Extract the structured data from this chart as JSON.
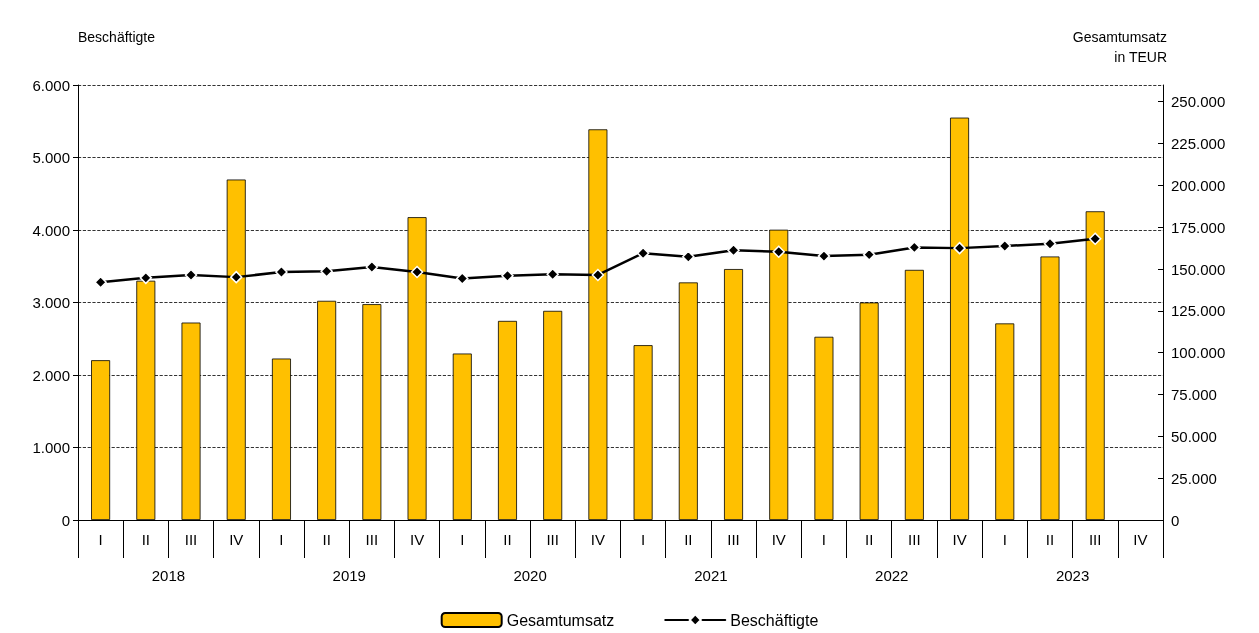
{
  "chart_data": {
    "type": "bar",
    "ylabel": "Beschäftigte",
    "y2label": "Gesamtumsatz\nin TEUR",
    "categories": [
      "I",
      "II",
      "III",
      "IV",
      "I",
      "II",
      "III",
      "IV",
      "I",
      "II",
      "III",
      "IV",
      "I",
      "II",
      "III",
      "IV",
      "I",
      "II",
      "III",
      "IV",
      "I",
      "II",
      "III",
      "IV"
    ],
    "annotations": [
      "2018",
      "2019",
      "2020",
      "2021",
      "2022",
      "2023"
    ],
    "series": [
      {
        "name": "Gesamtumsatz",
        "axis": "y2",
        "color": "#ffc000",
        "values": [
          95500,
          143000,
          118000,
          203500,
          96500,
          131000,
          129000,
          181000,
          99500,
          119000,
          125000,
          233500,
          104500,
          142000,
          150000,
          173500,
          109500,
          130000,
          149500,
          240500,
          117500,
          157500,
          184500,
          null
        ]
      },
      {
        "name": "Beschäftigte",
        "type": "line",
        "axis": "y",
        "color": "#000000",
        "marker": "diamond",
        "line_style": "solid",
        "values": [
          3280,
          3340,
          3380,
          3350,
          3420,
          3430,
          3490,
          3420,
          3330,
          3370,
          3390,
          3380,
          3680,
          3630,
          3720,
          3700,
          3640,
          3660,
          3760,
          3750,
          3780,
          3810,
          3880,
          null
        ]
      }
    ],
    "ylim": [
      0,
      6000
    ],
    "yticks": [
      0,
      {
        "value": 1000,
        "label": "1.000"
      },
      {
        "value": 2000,
        "label": "2.000"
      },
      {
        "value": 3000,
        "label": "3.000"
      },
      {
        "value": 4000,
        "label": "4.000"
      },
      {
        "value": 5000,
        "label": "5.000"
      },
      {
        "value": 6000,
        "label": "6.000"
      }
    ],
    "y2lim": [
      0,
      260000
    ],
    "y2ticks": [
      0,
      {
        "value": 25000,
        "label": "25.000"
      },
      {
        "value": 50000,
        "label": "50.000"
      },
      {
        "value": 75000,
        "label": "75.000"
      },
      {
        "value": 100000,
        "label": "100.000"
      },
      {
        "value": 125000,
        "label": "125.000"
      },
      {
        "value": 150000,
        "label": "150.000"
      },
      {
        "value": 175000,
        "label": "175.000"
      },
      {
        "value": 200000,
        "label": "200.000"
      },
      {
        "value": 225000,
        "label": "225.000"
      },
      {
        "value": 250000,
        "label": "250.000"
      }
    ],
    "grid": "y",
    "legend": "bottom"
  }
}
